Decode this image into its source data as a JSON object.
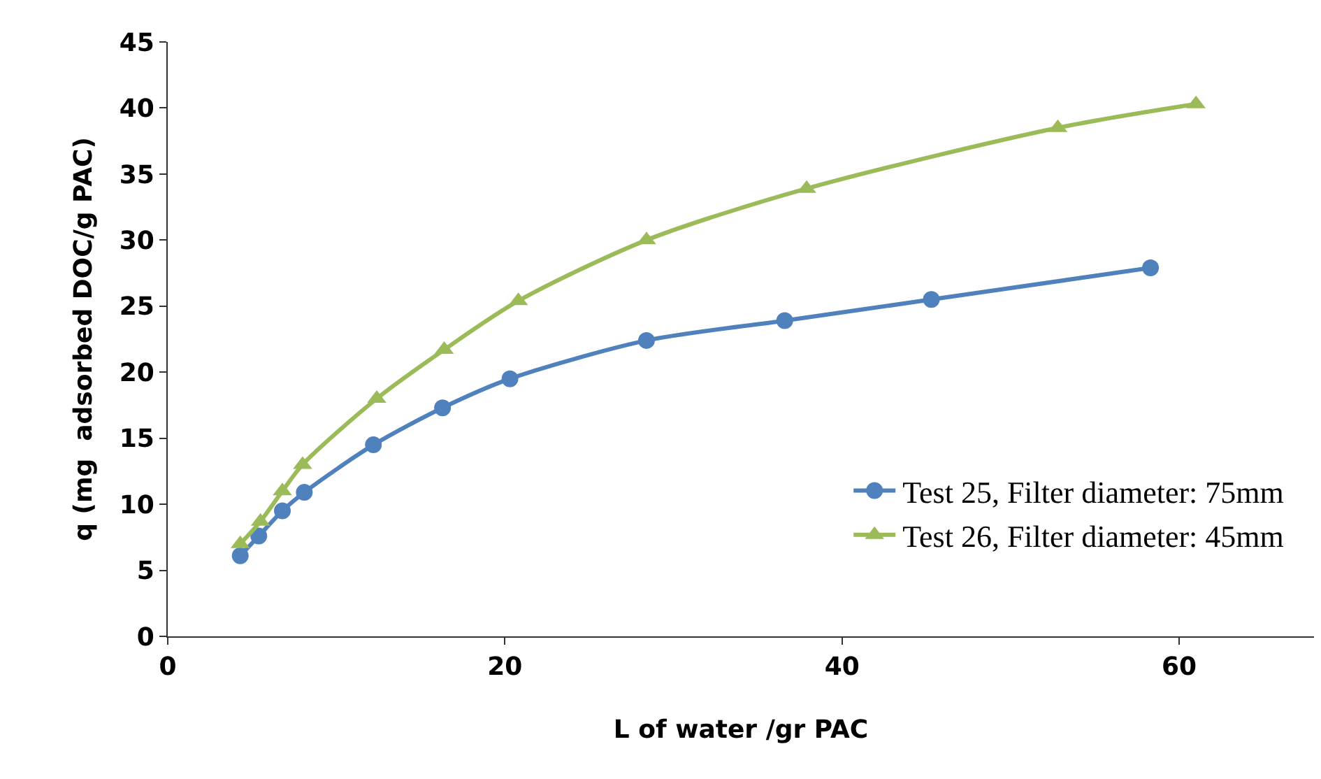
{
  "chart_data": {
    "type": "line",
    "xlabel": "L of water /gr PAC",
    "ylabel": "q (mg  adsorbed DOC/g PAC)",
    "xlim": [
      0,
      68
    ],
    "xticks": [
      0,
      20,
      40,
      60
    ],
    "ylim": [
      0,
      45
    ],
    "yticks": [
      0,
      5,
      10,
      15,
      20,
      25,
      30,
      35,
      40,
      45
    ],
    "grid": false,
    "legend": "bottom right",
    "series": [
      {
        "name": "Test 25, Filter diameter: 75mm",
        "color": "#4f81bd",
        "marker": "circle",
        "x": [
          4.3,
          5.4,
          6.8,
          8.1,
          12.2,
          16.3,
          20.3,
          28.4,
          36.6,
          45.3,
          58.3
        ],
        "values": [
          6.1,
          7.6,
          9.5,
          10.9,
          14.5,
          17.3,
          19.5,
          22.4,
          23.9,
          25.5,
          27.9
        ]
      },
      {
        "name": "Test 26, Filter diameter: 45mm",
        "color": "#9bbb59",
        "marker": "triangle",
        "x": [
          4.3,
          5.5,
          6.8,
          8.0,
          12.4,
          16.4,
          20.8,
          28.4,
          37.9,
          52.8,
          61
        ],
        "values": [
          7.0,
          8.7,
          11.0,
          13.0,
          18.0,
          21.7,
          25.4,
          30.0,
          33.9,
          38.5,
          40.3
        ]
      }
    ]
  }
}
